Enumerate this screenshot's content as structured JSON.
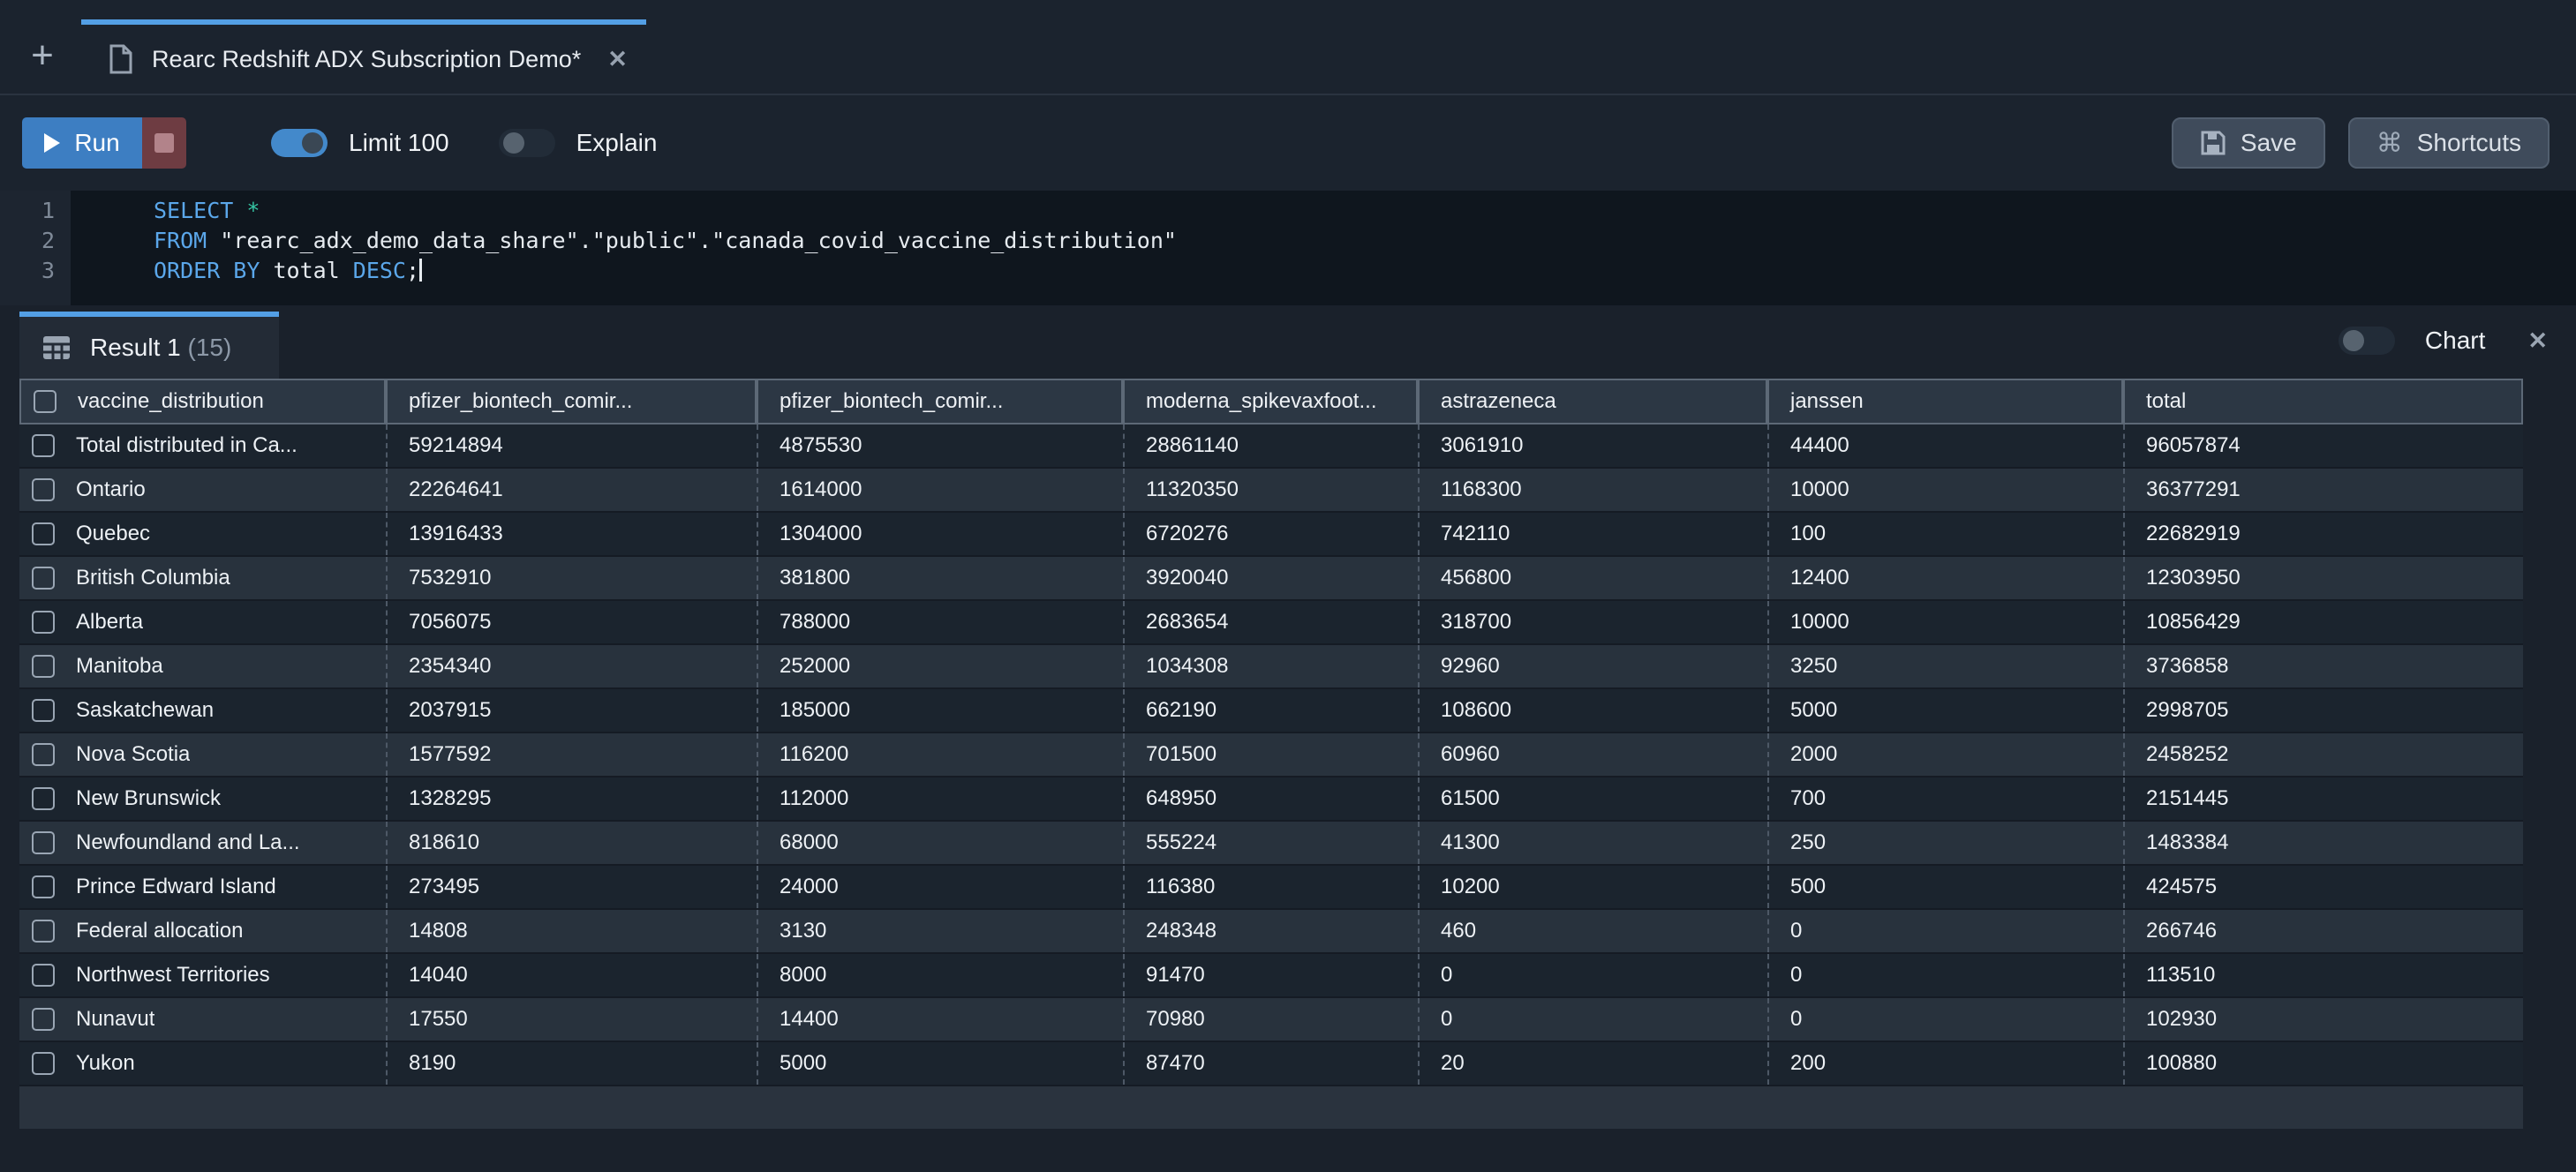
{
  "colors": {
    "accent_blue": "#539fe5",
    "run_button_blue": "#3d7ec2",
    "stop_button_red": "#6e3c42",
    "panel_bg": "#1b232e",
    "editor_bg": "#0f161e",
    "header_cell_bg": "#2c3744",
    "row_odd_bg": "#1b242e",
    "row_even_bg": "#28323d",
    "keyword_blue": "#5ba7ea",
    "star_teal": "#35c7a5"
  },
  "icons": {
    "new_tab_glyph": "+",
    "close_glyph": "✕",
    "shortcuts_glyph": "⌘"
  },
  "tab_bar": {
    "tab_title": "Rearc Redshift ADX Subscription Demo*"
  },
  "toolbar": {
    "run_label": "Run",
    "limit_label": "Limit 100",
    "explain_label": "Explain",
    "save_label": "Save",
    "shortcuts_label": "Shortcuts",
    "limit_toggle_state": "on",
    "explain_toggle_state": "off"
  },
  "editor": {
    "lines": [
      {
        "number": "1",
        "segments": [
          [
            "kw",
            "SELECT"
          ],
          [
            "plain",
            " "
          ],
          [
            "star",
            "*"
          ]
        ],
        "cursor": false
      },
      {
        "number": "2",
        "segments": [
          [
            "kw",
            "FROM"
          ],
          [
            "plain",
            " \"rearc_adx_demo_data_share\".\"public\".\"canada_covid_vaccine_distribution\""
          ]
        ],
        "cursor": false
      },
      {
        "number": "3",
        "segments": [
          [
            "kw",
            "ORDER BY"
          ],
          [
            "plain",
            " total "
          ],
          [
            "kw",
            "DESC"
          ],
          [
            "plain",
            ";"
          ]
        ],
        "cursor": true
      }
    ]
  },
  "results": {
    "tab_label": "Result 1",
    "tab_count": "(15)",
    "chart_label": "Chart",
    "chart_toggle_state": "off"
  },
  "table": {
    "columns": [
      "vaccine_distribution",
      "pfizer_biontech_comir...",
      "pfizer_biontech_comir...",
      "moderna_spikevaxfoot...",
      "astrazeneca",
      "janssen",
      "total"
    ],
    "rows": [
      [
        "Total distributed in Ca...",
        "59214894",
        "4875530",
        "28861140",
        "3061910",
        "44400",
        "96057874"
      ],
      [
        "Ontario",
        "22264641",
        "1614000",
        "11320350",
        "1168300",
        "10000",
        "36377291"
      ],
      [
        "Quebec",
        "13916433",
        "1304000",
        "6720276",
        "742110",
        "100",
        "22682919"
      ],
      [
        "British Columbia",
        "7532910",
        "381800",
        "3920040",
        "456800",
        "12400",
        "12303950"
      ],
      [
        "Alberta",
        "7056075",
        "788000",
        "2683654",
        "318700",
        "10000",
        "10856429"
      ],
      [
        "Manitoba",
        "2354340",
        "252000",
        "1034308",
        "92960",
        "3250",
        "3736858"
      ],
      [
        "Saskatchewan",
        "2037915",
        "185000",
        "662190",
        "108600",
        "5000",
        "2998705"
      ],
      [
        "Nova Scotia",
        "1577592",
        "116200",
        "701500",
        "60960",
        "2000",
        "2458252"
      ],
      [
        "New Brunswick",
        "1328295",
        "112000",
        "648950",
        "61500",
        "700",
        "2151445"
      ],
      [
        "Newfoundland and La...",
        "818610",
        "68000",
        "555224",
        "41300",
        "250",
        "1483384"
      ],
      [
        "Prince Edward Island",
        "273495",
        "24000",
        "116380",
        "10200",
        "500",
        "424575"
      ],
      [
        "Federal allocation",
        "14808",
        "3130",
        "248348",
        "460",
        "0",
        "266746"
      ],
      [
        "Northwest Territories",
        "14040",
        "8000",
        "91470",
        "0",
        "0",
        "113510"
      ],
      [
        "Nunavut",
        "17550",
        "14400",
        "70980",
        "0",
        "0",
        "102930"
      ],
      [
        "Yukon",
        "8190",
        "5000",
        "87470",
        "20",
        "200",
        "100880"
      ]
    ]
  }
}
